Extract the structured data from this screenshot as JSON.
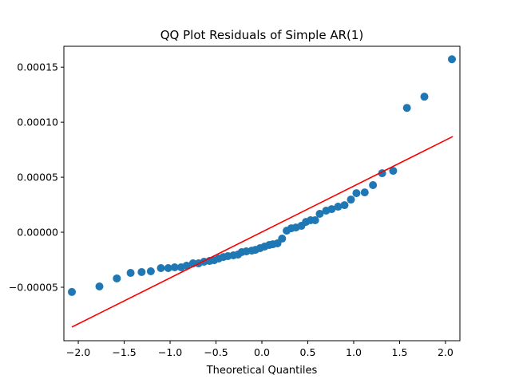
{
  "chart_data": {
    "type": "scatter",
    "title": "QQ Plot Residuals of Simple AR(1)",
    "xlabel": "Theoretical Quantiles",
    "ylabel": "",
    "xlim": [
      -2.157,
      2.157
    ],
    "ylim": [
      -9.86e-05,
      0.000169
    ],
    "grid": false,
    "x_ticks": [
      -2.0,
      -1.5,
      -1.0,
      -0.5,
      0.0,
      0.5,
      1.0,
      1.5,
      2.0
    ],
    "x_tick_labels": [
      "−2.0",
      "−1.5",
      "−1.0",
      "−0.5",
      "0.0",
      "0.5",
      "1.0",
      "1.5",
      "2.0"
    ],
    "y_ticks": [
      -5e-05,
      0.0,
      5e-05,
      0.0001,
      0.00015
    ],
    "y_tick_labels": [
      "−0.00005",
      "0.00000",
      "0.00005",
      "0.00010",
      "0.00015"
    ],
    "series": [
      {
        "name": "sample quantiles",
        "kind": "scatter",
        "color": "#1f77b4",
        "x": [
          -2.07,
          -1.77,
          -1.58,
          -1.43,
          -1.31,
          -1.21,
          -1.1,
          -1.02,
          -0.95,
          -0.88,
          -0.82,
          -0.75,
          -0.69,
          -0.63,
          -0.57,
          -0.52,
          -0.47,
          -0.42,
          -0.37,
          -0.31,
          -0.26,
          -0.22,
          -0.17,
          -0.11,
          -0.07,
          -0.02,
          0.03,
          0.08,
          0.12,
          0.17,
          0.22,
          0.27,
          0.32,
          0.37,
          0.43,
          0.48,
          0.53,
          0.58,
          0.63,
          0.7,
          0.76,
          0.83,
          0.9,
          0.97,
          1.03,
          1.12,
          1.21,
          1.31,
          1.43,
          1.58,
          1.77,
          2.07
        ],
        "y": [
          -5.43e-05,
          -4.93e-05,
          -4.2e-05,
          -3.7e-05,
          -3.62e-05,
          -3.55e-05,
          -3.26e-05,
          -3.26e-05,
          -3.19e-05,
          -3.19e-05,
          -3.04e-05,
          -2.83e-05,
          -2.83e-05,
          -2.68e-05,
          -2.61e-05,
          -2.54e-05,
          -2.39e-05,
          -2.25e-05,
          -2.17e-05,
          -2.1e-05,
          -2.03e-05,
          -1.81e-05,
          -1.74e-05,
          -1.67e-05,
          -1.6e-05,
          -1.45e-05,
          -1.3e-05,
          -1.16e-05,
          -1.09e-05,
          -1.01e-05,
          -5.8e-06,
          1.4e-06,
          3.6e-06,
          4.3e-06,
          5.8e-06,
          9.4e-06,
          1.09e-05,
          1.09e-05,
          1.67e-05,
          1.96e-05,
          2.1e-05,
          2.32e-05,
          2.46e-05,
          2.97e-05,
          3.55e-05,
          3.62e-05,
          4.28e-05,
          5.36e-05,
          5.58e-05,
          0.000113,
          0.0001232,
          0.0001572
        ]
      },
      {
        "name": "reference line",
        "kind": "line",
        "color": "#ff0000",
        "x": [
          -2.07,
          2.08
        ],
        "y": [
          -8.62e-05,
          8.7e-05
        ]
      }
    ]
  }
}
